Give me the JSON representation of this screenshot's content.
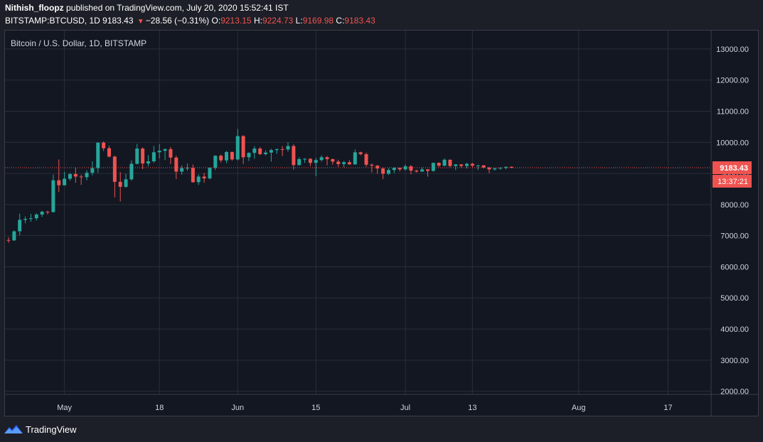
{
  "header": {
    "author": "Nithish_floopz",
    "published_text": "published on TradingView.com, July 20, 2020 15:52:41 IST",
    "symbol_line": {
      "symbol": "BITSTAMP:BTCUSD, 1D",
      "last": "9183.43",
      "change": "−28.56 (−0.31%)",
      "o_label": "O:",
      "o_value": "9213.15",
      "h_label": "H:",
      "h_value": "9224.73",
      "l_label": "L:",
      "l_value": "9169.98",
      "c_label": "C:",
      "c_value": "9183.43"
    }
  },
  "chart": {
    "symbol_label": "Bitcoin / U.S. Dollar, 1D, BITSTAMP",
    "last_price_label": "9183.43",
    "countdown_label": "13:37:21"
  },
  "footer": {
    "brand": "TradingView"
  },
  "colors": {
    "up": "#26a69a",
    "down": "#ef5350",
    "grid": "#2a2e39",
    "text": "#d1d4dc",
    "background": "#131722",
    "price_line": "#ef5350"
  },
  "chart_data": {
    "type": "candlestick",
    "title": "Bitcoin / U.S. Dollar, 1D, BITSTAMP",
    "ylim": [
      1900,
      13500
    ],
    "y_ticks": [
      "13000.00",
      "12000.00",
      "11000.00",
      "10000.00",
      "9000.00",
      "8000.00",
      "7000.00",
      "6000.00",
      "5000.00",
      "4000.00",
      "3000.00",
      "2000.00"
    ],
    "x_ticks": [
      "May",
      "18",
      "Jun",
      "15",
      "Jul",
      "13",
      "Aug",
      "17"
    ],
    "last_price": 9183.43,
    "grid": true,
    "candles": [
      {
        "date": "2020-04-21",
        "o": 6860,
        "h": 6950,
        "l": 6770,
        "c": 6850
      },
      {
        "date": "2020-04-22",
        "o": 6850,
        "h": 7170,
        "l": 6830,
        "c": 7140
      },
      {
        "date": "2020-04-23",
        "o": 7140,
        "h": 7710,
        "l": 7010,
        "c": 7510
      },
      {
        "date": "2020-04-24",
        "o": 7510,
        "h": 7620,
        "l": 7400,
        "c": 7540
      },
      {
        "date": "2020-04-25",
        "o": 7540,
        "h": 7700,
        "l": 7450,
        "c": 7560
      },
      {
        "date": "2020-04-26",
        "o": 7560,
        "h": 7720,
        "l": 7490,
        "c": 7680
      },
      {
        "date": "2020-04-27",
        "o": 7680,
        "h": 7800,
        "l": 7600,
        "c": 7770
      },
      {
        "date": "2020-04-28",
        "o": 7770,
        "h": 7800,
        "l": 7680,
        "c": 7760
      },
      {
        "date": "2020-04-29",
        "o": 7760,
        "h": 8960,
        "l": 7740,
        "c": 8780
      },
      {
        "date": "2020-04-30",
        "o": 8780,
        "h": 9450,
        "l": 8400,
        "c": 8620
      },
      {
        "date": "2020-05-01",
        "o": 8620,
        "h": 9050,
        "l": 8610,
        "c": 8830
      },
      {
        "date": "2020-05-02",
        "o": 8830,
        "h": 9010,
        "l": 8770,
        "c": 8980
      },
      {
        "date": "2020-05-03",
        "o": 8980,
        "h": 9190,
        "l": 8700,
        "c": 8900
      },
      {
        "date": "2020-05-04",
        "o": 8900,
        "h": 8960,
        "l": 8630,
        "c": 8880
      },
      {
        "date": "2020-05-05",
        "o": 8880,
        "h": 9100,
        "l": 8780,
        "c": 9020
      },
      {
        "date": "2020-05-06",
        "o": 9020,
        "h": 9390,
        "l": 8940,
        "c": 9170
      },
      {
        "date": "2020-05-07",
        "o": 9170,
        "h": 10000,
        "l": 9020,
        "c": 9990
      },
      {
        "date": "2020-05-08",
        "o": 9990,
        "h": 10030,
        "l": 9720,
        "c": 9810
      },
      {
        "date": "2020-05-09",
        "o": 9810,
        "h": 9890,
        "l": 9520,
        "c": 9540
      },
      {
        "date": "2020-05-10",
        "o": 9540,
        "h": 9570,
        "l": 8230,
        "c": 8730
      },
      {
        "date": "2020-05-11",
        "o": 8730,
        "h": 9040,
        "l": 8100,
        "c": 8570
      },
      {
        "date": "2020-05-12",
        "o": 8570,
        "h": 8990,
        "l": 8540,
        "c": 8810
      },
      {
        "date": "2020-05-13",
        "o": 8810,
        "h": 9420,
        "l": 8770,
        "c": 9310
      },
      {
        "date": "2020-05-14",
        "o": 9310,
        "h": 9950,
        "l": 9290,
        "c": 9800
      },
      {
        "date": "2020-05-15",
        "o": 9800,
        "h": 9840,
        "l": 9140,
        "c": 9320
      },
      {
        "date": "2020-05-16",
        "o": 9320,
        "h": 9590,
        "l": 9230,
        "c": 9390
      },
      {
        "date": "2020-05-17",
        "o": 9390,
        "h": 9880,
        "l": 9340,
        "c": 9680
      },
      {
        "date": "2020-05-18",
        "o": 9680,
        "h": 9940,
        "l": 9480,
        "c": 9730
      },
      {
        "date": "2020-05-19",
        "o": 9730,
        "h": 9810,
        "l": 9430,
        "c": 9780
      },
      {
        "date": "2020-05-20",
        "o": 9780,
        "h": 9850,
        "l": 9300,
        "c": 9510
      },
      {
        "date": "2020-05-21",
        "o": 9510,
        "h": 9570,
        "l": 8820,
        "c": 9060
      },
      {
        "date": "2020-05-22",
        "o": 9060,
        "h": 9260,
        "l": 8960,
        "c": 9170
      },
      {
        "date": "2020-05-23",
        "o": 9170,
        "h": 9320,
        "l": 9090,
        "c": 9180
      },
      {
        "date": "2020-05-24",
        "o": 9180,
        "h": 9290,
        "l": 8700,
        "c": 8720
      },
      {
        "date": "2020-05-25",
        "o": 8720,
        "h": 8970,
        "l": 8630,
        "c": 8900
      },
      {
        "date": "2020-05-26",
        "o": 8900,
        "h": 9020,
        "l": 8700,
        "c": 8840
      },
      {
        "date": "2020-05-27",
        "o": 8840,
        "h": 9200,
        "l": 8810,
        "c": 9180
      },
      {
        "date": "2020-05-28",
        "o": 9180,
        "h": 9580,
        "l": 9110,
        "c": 9570
      },
      {
        "date": "2020-05-29",
        "o": 9570,
        "h": 9610,
        "l": 9350,
        "c": 9420
      },
      {
        "date": "2020-05-30",
        "o": 9420,
        "h": 9720,
        "l": 9330,
        "c": 9690
      },
      {
        "date": "2020-05-31",
        "o": 9690,
        "h": 9700,
        "l": 9410,
        "c": 9450
      },
      {
        "date": "2020-06-01",
        "o": 9450,
        "h": 10430,
        "l": 9420,
        "c": 10200
      },
      {
        "date": "2020-06-02",
        "o": 10200,
        "h": 10230,
        "l": 9300,
        "c": 9520
      },
      {
        "date": "2020-06-03",
        "o": 9520,
        "h": 9680,
        "l": 9400,
        "c": 9660
      },
      {
        "date": "2020-06-04",
        "o": 9660,
        "h": 9880,
        "l": 9470,
        "c": 9800
      },
      {
        "date": "2020-06-05",
        "o": 9800,
        "h": 9850,
        "l": 9590,
        "c": 9620
      },
      {
        "date": "2020-06-06",
        "o": 9620,
        "h": 9740,
        "l": 9580,
        "c": 9670
      },
      {
        "date": "2020-06-07",
        "o": 9670,
        "h": 9790,
        "l": 9380,
        "c": 9750
      },
      {
        "date": "2020-06-08",
        "o": 9750,
        "h": 9800,
        "l": 9630,
        "c": 9780
      },
      {
        "date": "2020-06-09",
        "o": 9780,
        "h": 9880,
        "l": 9560,
        "c": 9770
      },
      {
        "date": "2020-06-10",
        "o": 9770,
        "h": 10000,
        "l": 9700,
        "c": 9880
      },
      {
        "date": "2020-06-11",
        "o": 9880,
        "h": 9940,
        "l": 9120,
        "c": 9270
      },
      {
        "date": "2020-06-12",
        "o": 9270,
        "h": 9520,
        "l": 9250,
        "c": 9460
      },
      {
        "date": "2020-06-13",
        "o": 9460,
        "h": 9490,
        "l": 9340,
        "c": 9470
      },
      {
        "date": "2020-06-14",
        "o": 9470,
        "h": 9490,
        "l": 9240,
        "c": 9340
      },
      {
        "date": "2020-06-15",
        "o": 9340,
        "h": 9500,
        "l": 8910,
        "c": 9430
      },
      {
        "date": "2020-06-16",
        "o": 9430,
        "h": 9580,
        "l": 9380,
        "c": 9520
      },
      {
        "date": "2020-06-17",
        "o": 9520,
        "h": 9560,
        "l": 9260,
        "c": 9460
      },
      {
        "date": "2020-06-18",
        "o": 9460,
        "h": 9480,
        "l": 9280,
        "c": 9380
      },
      {
        "date": "2020-06-19",
        "o": 9380,
        "h": 9440,
        "l": 9210,
        "c": 9300
      },
      {
        "date": "2020-06-20",
        "o": 9300,
        "h": 9400,
        "l": 9200,
        "c": 9360
      },
      {
        "date": "2020-06-21",
        "o": 9360,
        "h": 9420,
        "l": 9280,
        "c": 9290
      },
      {
        "date": "2020-06-22",
        "o": 9290,
        "h": 9770,
        "l": 9280,
        "c": 9680
      },
      {
        "date": "2020-06-23",
        "o": 9680,
        "h": 9700,
        "l": 9580,
        "c": 9620
      },
      {
        "date": "2020-06-24",
        "o": 9620,
        "h": 9670,
        "l": 9210,
        "c": 9280
      },
      {
        "date": "2020-06-25",
        "o": 9280,
        "h": 9320,
        "l": 9030,
        "c": 9250
      },
      {
        "date": "2020-06-26",
        "o": 9250,
        "h": 9270,
        "l": 8990,
        "c": 9160
      },
      {
        "date": "2020-06-27",
        "o": 9160,
        "h": 9200,
        "l": 8820,
        "c": 8990
      },
      {
        "date": "2020-06-28",
        "o": 8990,
        "h": 9170,
        "l": 8950,
        "c": 9110
      },
      {
        "date": "2020-06-29",
        "o": 9110,
        "h": 9190,
        "l": 9010,
        "c": 9180
      },
      {
        "date": "2020-06-30",
        "o": 9180,
        "h": 9190,
        "l": 9060,
        "c": 9130
      },
      {
        "date": "2020-07-01",
        "o": 9130,
        "h": 9290,
        "l": 9090,
        "c": 9230
      },
      {
        "date": "2020-07-02",
        "o": 9230,
        "h": 9270,
        "l": 8970,
        "c": 9090
      },
      {
        "date": "2020-07-03",
        "o": 9090,
        "h": 9120,
        "l": 9030,
        "c": 9060
      },
      {
        "date": "2020-07-04",
        "o": 9060,
        "h": 9190,
        "l": 9050,
        "c": 9130
      },
      {
        "date": "2020-07-05",
        "o": 9130,
        "h": 9140,
        "l": 8900,
        "c": 9080
      },
      {
        "date": "2020-07-06",
        "o": 9080,
        "h": 9350,
        "l": 9060,
        "c": 9340
      },
      {
        "date": "2020-07-07",
        "o": 9340,
        "h": 9360,
        "l": 9200,
        "c": 9250
      },
      {
        "date": "2020-07-08",
        "o": 9250,
        "h": 9480,
        "l": 9230,
        "c": 9440
      },
      {
        "date": "2020-07-09",
        "o": 9440,
        "h": 9450,
        "l": 9200,
        "c": 9240
      },
      {
        "date": "2020-07-10",
        "o": 9240,
        "h": 9300,
        "l": 9110,
        "c": 9290
      },
      {
        "date": "2020-07-11",
        "o": 9290,
        "h": 9300,
        "l": 9190,
        "c": 9240
      },
      {
        "date": "2020-07-12",
        "o": 9240,
        "h": 9340,
        "l": 9160,
        "c": 9310
      },
      {
        "date": "2020-07-13",
        "o": 9310,
        "h": 9340,
        "l": 9200,
        "c": 9250
      },
      {
        "date": "2020-07-14",
        "o": 9250,
        "h": 9270,
        "l": 9110,
        "c": 9260
      },
      {
        "date": "2020-07-15",
        "o": 9260,
        "h": 9270,
        "l": 9170,
        "c": 9190
      },
      {
        "date": "2020-07-16",
        "o": 9190,
        "h": 9210,
        "l": 9010,
        "c": 9130
      },
      {
        "date": "2020-07-17",
        "o": 9130,
        "h": 9180,
        "l": 9090,
        "c": 9160
      },
      {
        "date": "2020-07-18",
        "o": 9160,
        "h": 9200,
        "l": 9120,
        "c": 9180
      },
      {
        "date": "2020-07-19",
        "o": 9180,
        "h": 9230,
        "l": 9130,
        "c": 9210
      },
      {
        "date": "2020-07-20",
        "o": 9213.15,
        "h": 9224.73,
        "l": 9169.98,
        "c": 9183.43
      }
    ]
  }
}
